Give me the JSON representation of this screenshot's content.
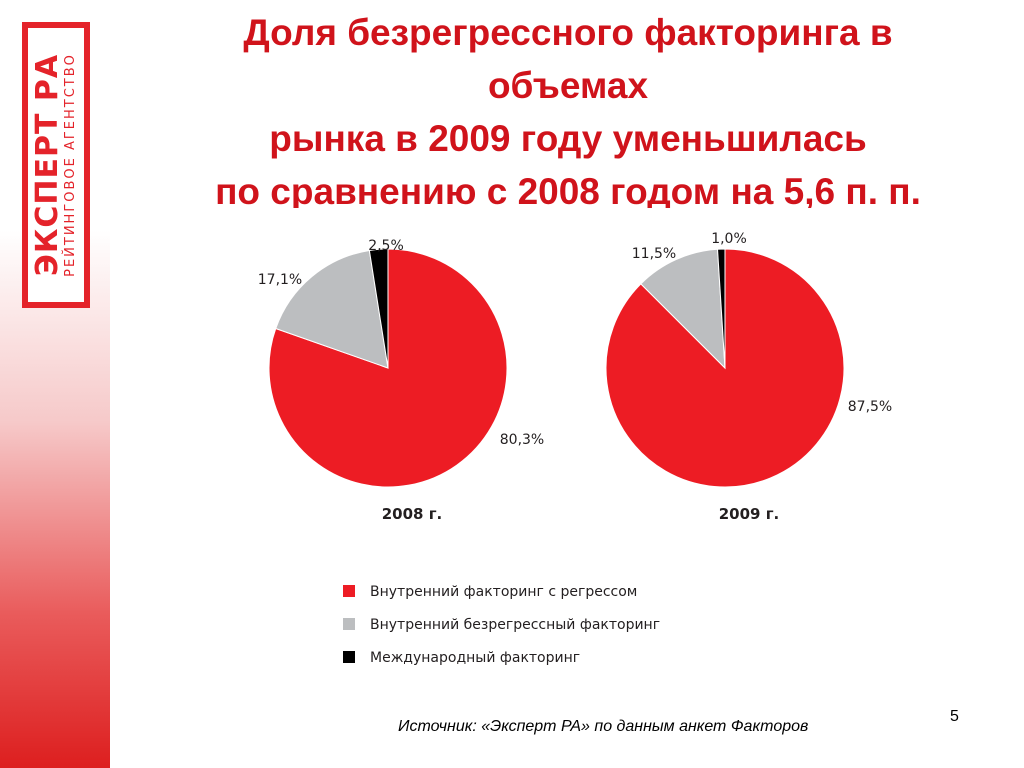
{
  "slide": {
    "title_lines": [
      "Доля безрегрессного факторинга в",
      "объемах",
      "рынка в 2009 году уменьшилась",
      "по сравнению с 2008 годом на 5,6 п. п."
    ],
    "source": "Источник: «Эксперт РА» по данным анкет Факторов",
    "page_number": "5"
  },
  "logo": {
    "main": "ЭКСПЕРТ РА",
    "sub": "РЕЙТИНГОВОЕ АГЕНТСТВО"
  },
  "colors": {
    "brand_red": "#e4232a",
    "title_red": "#d0131b",
    "series_red": "#ed1c24",
    "series_gray": "#bcbec0",
    "series_black": "#000000"
  },
  "chart_data": [
    {
      "type": "pie",
      "title": "2008 г.",
      "series": [
        {
          "name": "Внутренний факторинг с регрессом",
          "value": 80.3,
          "label": "80,3%",
          "color": "#ed1c24"
        },
        {
          "name": "Внутренний безрегрессный факторинг",
          "value": 17.1,
          "label": "17,1%",
          "color": "#bcbec0"
        },
        {
          "name": "Международный факторинг",
          "value": 2.5,
          "label": "2,5%",
          "color": "#000000"
        }
      ]
    },
    {
      "type": "pie",
      "title": "2009 г.",
      "series": [
        {
          "name": "Внутренний факторинг с регрессом",
          "value": 87.5,
          "label": "87,5%",
          "color": "#ed1c24"
        },
        {
          "name": "Внутренний безрегрессный факторинг",
          "value": 11.5,
          "label": "11,5%",
          "color": "#bcbec0"
        },
        {
          "name": "Международный факторинг",
          "value": 1.0,
          "label": "1,0%",
          "color": "#000000"
        }
      ]
    }
  ],
  "legend": [
    {
      "label": "Внутренний факторинг с регрессом",
      "color": "#ed1c24"
    },
    {
      "label": "Внутренний безрегрессный факторинг",
      "color": "#bcbec0"
    },
    {
      "label": "Международный факторинг",
      "color": "#000000"
    }
  ]
}
